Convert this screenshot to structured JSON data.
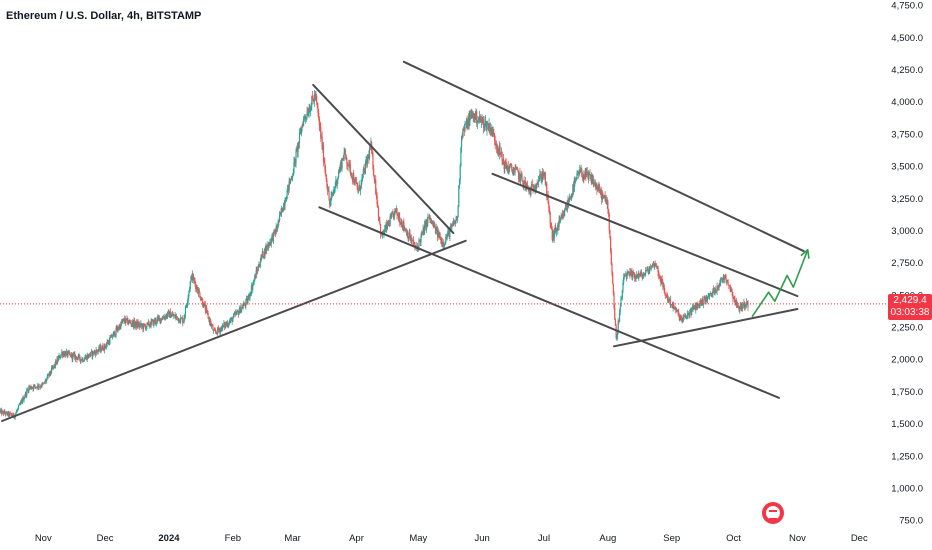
{
  "header": {
    "title": "Ethereum / U.S. Dollar, 4h, BITSTAMP"
  },
  "price_badge": {
    "price": "2,429.4",
    "countdown": "03:03:38"
  },
  "colors": {
    "up": "#26a69a",
    "down": "#ef5350",
    "trendline": "#4a4a4f",
    "projection": "#2e9e4a",
    "badge": "#f23645",
    "price_line": "#f23645"
  },
  "chart_data": {
    "type": "candlestick",
    "symbol": "Ethereum / U.S. Dollar",
    "interval": "4h",
    "exchange": "BITSTAMP",
    "last_price": 2429.4,
    "y_axis": {
      "ticks": [
        750,
        1000,
        1250,
        1500,
        1750,
        2000,
        2250,
        2500,
        2750,
        3000,
        3250,
        3500,
        3750,
        4000,
        4250,
        4500,
        4750
      ],
      "tick_labels": [
        "750.0",
        "1,000.0",
        "1,250.0",
        "1,500.0",
        "1,750.0",
        "2,000.0",
        "2,250.0",
        "2,500.0",
        "2,750.0",
        "3,000.0",
        "3,250.0",
        "3,500.0",
        "3,750.0",
        "4,000.0",
        "4,250.0",
        "4,500.0",
        "4,750.0"
      ],
      "range": [
        720,
        4790
      ]
    },
    "x_axis": {
      "labels": [
        "Nov",
        "Dec",
        "2024",
        "Feb",
        "Mar",
        "Apr",
        "May",
        "Jun",
        "Jul",
        "Aug",
        "Sep",
        "Oct",
        "Nov",
        "Dec"
      ],
      "dates": [
        "2023-11-01",
        "2023-12-01",
        "2024-01-01",
        "2024-02-01",
        "2024-03-01",
        "2024-04-01",
        "2024-05-01",
        "2024-06-01",
        "2024-07-01",
        "2024-08-01",
        "2024-09-01",
        "2024-10-01",
        "2024-11-01",
        "2024-12-01"
      ],
      "bold": [
        "2024"
      ],
      "range": [
        "2023-10-11",
        "2024-12-13"
      ]
    },
    "price_path": [
      [
        "2023-10-11",
        1590
      ],
      [
        "2023-10-18",
        1560
      ],
      [
        "2023-10-25",
        1780
      ],
      [
        "2023-11-01",
        1800
      ],
      [
        "2023-11-10",
        2050
      ],
      [
        "2023-11-20",
        2000
      ],
      [
        "2023-12-01",
        2100
      ],
      [
        "2023-12-10",
        2300
      ],
      [
        "2023-12-20",
        2250
      ],
      [
        "2024-01-01",
        2350
      ],
      [
        "2024-01-08",
        2300
      ],
      [
        "2024-01-12",
        2650
      ],
      [
        "2024-01-16",
        2500
      ],
      [
        "2024-01-23",
        2200
      ],
      [
        "2024-01-31",
        2300
      ],
      [
        "2024-02-08",
        2450
      ],
      [
        "2024-02-15",
        2800
      ],
      [
        "2024-02-22",
        3000
      ],
      [
        "2024-03-01",
        3450
      ],
      [
        "2024-03-06",
        3850
      ],
      [
        "2024-03-12",
        4050
      ],
      [
        "2024-03-15",
        3700
      ],
      [
        "2024-03-19",
        3200
      ],
      [
        "2024-03-26",
        3600
      ],
      [
        "2024-04-02",
        3300
      ],
      [
        "2024-04-08",
        3650
      ],
      [
        "2024-04-13",
        2950
      ],
      [
        "2024-04-20",
        3150
      ],
      [
        "2024-04-30",
        2850
      ],
      [
        "2024-05-06",
        3100
      ],
      [
        "2024-05-13",
        2900
      ],
      [
        "2024-05-20",
        3100
      ],
      [
        "2024-05-22",
        3750
      ],
      [
        "2024-05-27",
        3900
      ],
      [
        "2024-06-05",
        3800
      ],
      [
        "2024-06-12",
        3500
      ],
      [
        "2024-06-18",
        3450
      ],
      [
        "2024-06-24",
        3300
      ],
      [
        "2024-07-01",
        3450
      ],
      [
        "2024-07-05",
        2950
      ],
      [
        "2024-07-10",
        3100
      ],
      [
        "2024-07-18",
        3450
      ],
      [
        "2024-07-24",
        3400
      ],
      [
        "2024-08-01",
        3200
      ],
      [
        "2024-08-05",
        2150
      ],
      [
        "2024-08-09",
        2650
      ],
      [
        "2024-08-18",
        2650
      ],
      [
        "2024-08-24",
        2750
      ],
      [
        "2024-08-29",
        2500
      ],
      [
        "2024-09-06",
        2300
      ],
      [
        "2024-09-12",
        2400
      ],
      [
        "2024-09-20",
        2500
      ],
      [
        "2024-09-27",
        2650
      ],
      [
        "2024-10-03",
        2400
      ],
      [
        "2024-10-08",
        2430
      ]
    ],
    "trendlines": [
      {
        "from": [
          "2023-10-12",
          1520
        ],
        "to": [
          "2024-05-24",
          2920
        ]
      },
      {
        "from": [
          "2024-03-11",
          4130
        ],
        "to": [
          "2024-05-18",
          2980
        ]
      },
      {
        "from": [
          "2024-03-14",
          3180
        ],
        "to": [
          "2024-10-23",
          1700
        ]
      },
      {
        "from": [
          "2024-04-24",
          4310
        ],
        "to": [
          "2024-11-04",
          2840
        ]
      },
      {
        "from": [
          "2024-06-06",
          3440
        ],
        "to": [
          "2024-11-01",
          2490
        ]
      },
      {
        "from": [
          "2024-08-04",
          2100
        ],
        "to": [
          "2024-11-01",
          2390
        ]
      }
    ],
    "projection": [
      [
        "2024-10-10",
        2330
      ],
      [
        "2024-10-18",
        2520
      ],
      [
        "2024-10-21",
        2450
      ],
      [
        "2024-10-27",
        2650
      ],
      [
        "2024-10-30",
        2560
      ],
      [
        "2024-11-06",
        2850
      ]
    ]
  }
}
